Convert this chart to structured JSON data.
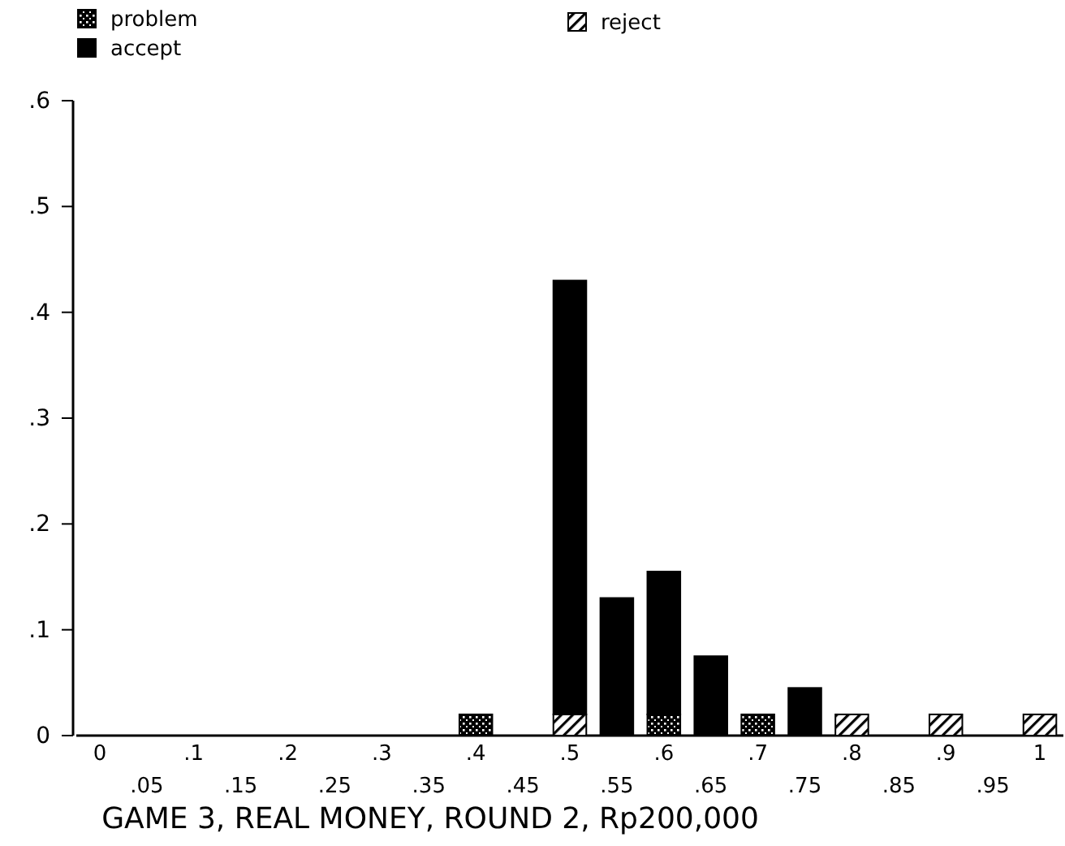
{
  "chart_data": {
    "type": "bar",
    "xlabel": "GAME 3, REAL MONEY, ROUND 2, Rp200,000",
    "categories": [
      "0",
      ".05",
      ".1",
      ".15",
      ".2",
      ".25",
      ".3",
      ".35",
      ".4",
      ".45",
      ".5",
      ".55",
      ".6",
      ".65",
      ".7",
      ".75",
      ".8",
      ".85",
      ".9",
      ".95",
      "1"
    ],
    "stacked": true,
    "series": [
      {
        "name": "problem",
        "color": "#000000",
        "values": [
          null,
          null,
          null,
          null,
          null,
          null,
          null,
          null,
          0.02,
          null,
          null,
          null,
          0.02,
          null,
          0.02,
          null,
          null,
          null,
          null,
          null,
          null
        ]
      },
      {
        "name": "reject",
        "color": "#000000",
        "values": [
          null,
          null,
          null,
          null,
          null,
          null,
          null,
          null,
          null,
          null,
          0.02,
          null,
          null,
          null,
          null,
          null,
          0.02,
          null,
          0.02,
          null,
          0.02
        ]
      },
      {
        "name": "accept",
        "color": "#000000",
        "values": [
          null,
          null,
          null,
          null,
          null,
          null,
          null,
          null,
          null,
          null,
          0.41,
          0.13,
          0.135,
          0.075,
          null,
          0.045,
          null,
          null,
          null,
          null,
          null
        ]
      }
    ],
    "ylim": [
      0,
      0.6
    ],
    "yticks": [
      0,
      {
        "value": 0.1,
        "label": ".1"
      },
      {
        "value": 0.2,
        "label": ".2"
      },
      {
        "value": 0.3,
        "label": ".3"
      },
      {
        "value": 0.4,
        "label": ".4"
      },
      {
        "value": 0.5,
        "label": ".5"
      },
      {
        "value": 0.6,
        "label": ".6"
      }
    ],
    "legend": "top",
    "grid": false
  }
}
